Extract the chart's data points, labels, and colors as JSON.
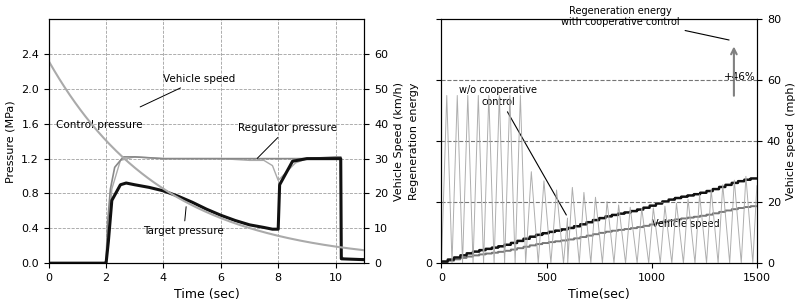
{
  "left_chart": {
    "xlabel": "Time (sec)",
    "ylabel_left": "Pressure (MPa)",
    "ylabel_right": "Vehicle Speed (km/h)",
    "xlim": [
      0,
      11
    ],
    "ylim_left": [
      0,
      2.8
    ],
    "ylim_right": [
      0,
      70
    ],
    "yticks_left": [
      0,
      0.4,
      0.8,
      1.2,
      1.6,
      2.0,
      2.4
    ],
    "yticks_right": [
      0,
      10,
      20,
      30,
      40,
      50,
      60
    ],
    "xticks": [
      0,
      2,
      4,
      6,
      8,
      10
    ],
    "vehicle_speed_color": "#aaaaaa",
    "control_pressure_color": "#888888",
    "regulator_pressure_color": "#aaaaaa",
    "target_pressure_color": "#111111"
  },
  "right_chart": {
    "xlabel": "Time(sec)",
    "ylabel_left": "Regeneration energy",
    "ylabel_right": "Vehicle speed  (mph)",
    "xlim": [
      0,
      1500
    ],
    "ylim_right": [
      0,
      80
    ],
    "yticks_right": [
      0,
      20,
      40,
      60,
      80
    ],
    "xticks": [
      0,
      500,
      1000,
      1500
    ],
    "with_coop_color": "#111111",
    "without_coop_color": "#777777",
    "vehicle_speed_color": "#aaaaaa",
    "dashed_line_color": "#666666",
    "dashed_vals_mph": [
      60,
      40,
      20
    ]
  }
}
